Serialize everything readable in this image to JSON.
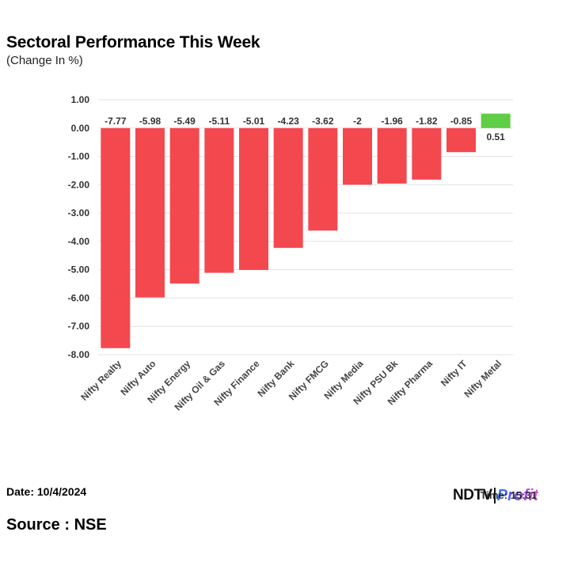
{
  "chart_data": {
    "type": "bar",
    "title": "Sectoral Performance This Week",
    "subtitle": "(Change In %)",
    "categories": [
      "Nifty Realty",
      "Nifty Auto",
      "Nifty Energy",
      "Nifty Oil & Gas",
      "Nifty Finance",
      "Nifty Bank",
      "Nifty FMCG",
      "Nifty Media",
      "Nifty PSU Bk",
      "Nifty Pharma",
      "Nifty IT",
      "Nifty Metal"
    ],
    "values": [
      -7.77,
      -5.98,
      -5.49,
      -5.11,
      -5.01,
      -4.23,
      -3.62,
      -2,
      -1.96,
      -1.82,
      -0.85,
      0.51
    ],
    "data_labels": [
      "-7.77",
      "-5.98",
      "-5.49",
      "-5.11",
      "-5.01",
      "-4.23",
      "-3.62",
      "-2",
      "-1.96",
      "-1.82",
      "-0.85",
      "0.51"
    ],
    "ylim": [
      -8,
      1
    ],
    "yticks": [
      1,
      0,
      -1,
      -2,
      -3,
      -4,
      -5,
      -6,
      -7,
      -8
    ],
    "ytick_labels": [
      "1.00",
      "0.00",
      "-1.00",
      "-2.00",
      "-3.00",
      "-4.00",
      "-5.00",
      "-6.00",
      "-7.00",
      "-8.00"
    ],
    "xlabel": "",
    "ylabel": "",
    "grid": true,
    "colors": {
      "negative": "#f4484f",
      "positive": "#5fcd45",
      "grid": "#e3e3e3",
      "tick_text": "#333333"
    }
  },
  "footer": {
    "date": "Date: 10/4/2024",
    "source": "Source : NSE",
    "logo_ndtv": "NDTV",
    "logo_profit": "Profit",
    "logo_overlay": "Time: 15:31"
  }
}
